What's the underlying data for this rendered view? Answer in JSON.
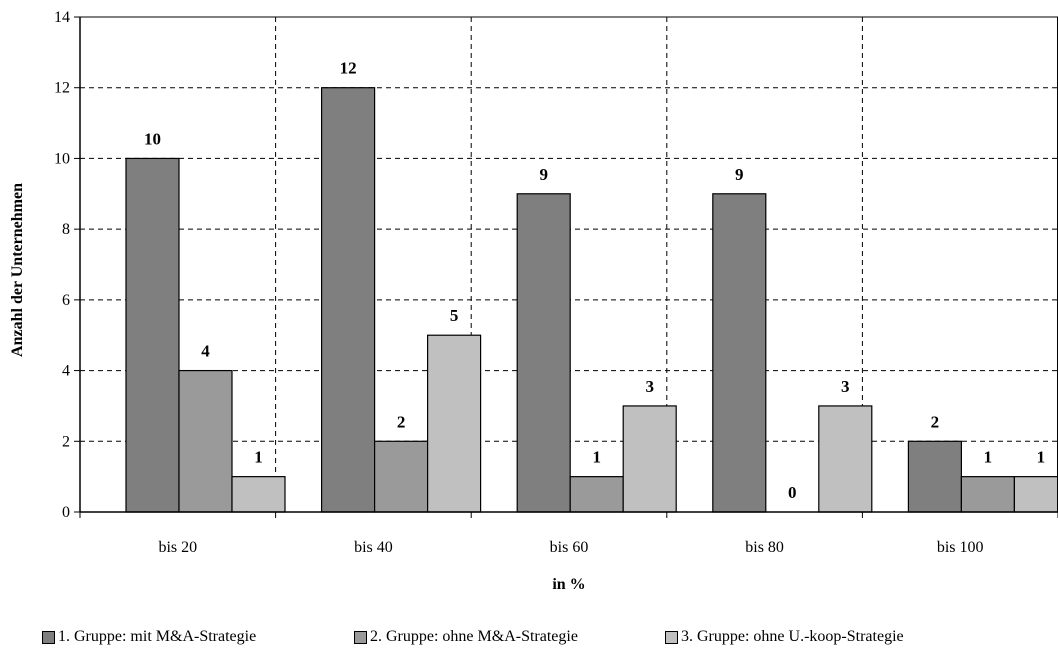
{
  "chart_data": {
    "type": "bar",
    "categories": [
      "bis 20",
      "bis 40",
      "bis 60",
      "bis 80",
      "bis 100"
    ],
    "series": [
      {
        "name": "1. Gruppe: mit M&A-Strategie",
        "values": [
          10,
          12,
          9,
          9,
          2
        ],
        "color": "#7f7f7f"
      },
      {
        "name": "2. Gruppe: ohne M&A-Strategie",
        "values": [
          4,
          2,
          1,
          0,
          1
        ],
        "color": "#9a9a9a"
      },
      {
        "name": "3. Gruppe: ohne U.-koop-Strategie",
        "values": [
          1,
          5,
          3,
          3,
          1
        ],
        "color": "#c0c0c0"
      }
    ],
    "xlabel": "in %",
    "ylabel": "Anzahl der Unternehmen",
    "ylim": [
      0,
      14
    ],
    "yticks": [
      0,
      2,
      4,
      6,
      8,
      10,
      12,
      14
    ],
    "grid": true,
    "legend_position": "bottom"
  }
}
